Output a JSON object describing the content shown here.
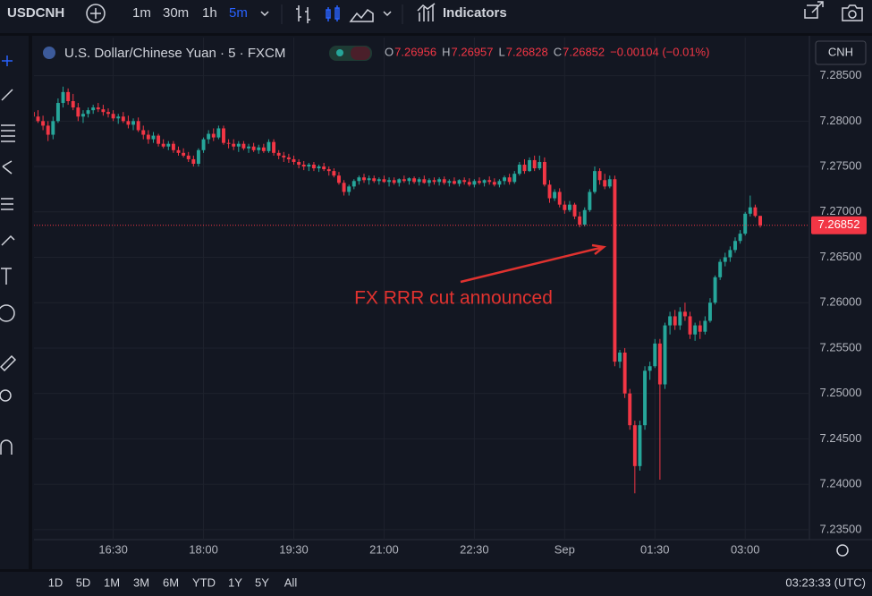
{
  "toolbar": {
    "symbol": "USDCNH",
    "intervals": [
      "1m",
      "30m",
      "1h",
      "5m"
    ],
    "indicators": "Indicators"
  },
  "chart_data": {
    "type": "candlestick",
    "title": "U.S. Dollar/Chinese Yuan · 5 · FXCM",
    "ohlc": [
      {
        "key": "O",
        "value": "7.26956"
      },
      {
        "key": "H",
        "value": "7.26957"
      },
      {
        "key": "L",
        "value": "7.26828"
      },
      {
        "key": "C",
        "value": "7.26852"
      }
    ],
    "change": "−0.00104 (−0.01%)",
    "currency": "CNH",
    "annotation": "FX RRR cut announced",
    "up_color": "#26a69a",
    "down_color": "#f23645",
    "grid": true,
    "xlim": [
      911,
      1684
    ],
    "xticks": [
      {
        "value": 990,
        "label": "16:30"
      },
      {
        "value": 1080,
        "label": "18:00"
      },
      {
        "value": 1170,
        "label": "19:30"
      },
      {
        "value": 1260,
        "label": "21:00"
      },
      {
        "value": 1350,
        "label": "22:30"
      },
      {
        "value": 1440,
        "label": "Sep"
      },
      {
        "value": 1530,
        "label": "01:30"
      },
      {
        "value": 1620,
        "label": "03:00"
      }
    ],
    "ylim": [
      7.2339,
      7.2892
    ],
    "yticks": [
      {
        "value": 7.285,
        "label": "7.28500"
      },
      {
        "value": 7.28,
        "label": "7.28000"
      },
      {
        "value": 7.275,
        "label": "7.27500"
      },
      {
        "value": 7.27,
        "label": "7.27000"
      },
      {
        "value": 7.265,
        "label": "7.26500"
      },
      {
        "value": 7.26,
        "label": "7.26000"
      },
      {
        "value": 7.255,
        "label": "7.25500"
      },
      {
        "value": 7.25,
        "label": "7.25000"
      },
      {
        "value": 7.245,
        "label": "7.24500"
      },
      {
        "value": 7.24,
        "label": "7.24000"
      },
      {
        "value": 7.235,
        "label": "7.23500"
      }
    ],
    "candles": [
      [
        910,
        7.281,
        7.2815,
        7.28,
        7.2805
      ],
      [
        915,
        7.2805,
        7.2812,
        7.2798,
        7.28
      ],
      [
        920,
        7.28,
        7.2806,
        7.279,
        7.2795
      ],
      [
        925,
        7.2795,
        7.28,
        7.2778,
        7.2785
      ],
      [
        930,
        7.2785,
        7.2805,
        7.278,
        7.28
      ],
      [
        935,
        7.28,
        7.2825,
        7.2798,
        7.282
      ],
      [
        940,
        7.282,
        7.2838,
        7.2815,
        7.2832
      ],
      [
        945,
        7.2832,
        7.2836,
        7.2818,
        7.2822
      ],
      [
        950,
        7.2822,
        7.283,
        7.2812,
        7.2815
      ],
      [
        955,
        7.2815,
        7.282,
        7.28,
        7.2805
      ],
      [
        960,
        7.2805,
        7.2812,
        7.2798,
        7.2808
      ],
      [
        965,
        7.2808,
        7.2815,
        7.2804,
        7.2812
      ],
      [
        970,
        7.2812,
        7.2818,
        7.2808,
        7.2815
      ],
      [
        975,
        7.2815,
        7.282,
        7.281,
        7.2813
      ],
      [
        980,
        7.2813,
        7.2818,
        7.2806,
        7.281
      ],
      [
        985,
        7.281,
        7.2814,
        7.2804,
        7.2808
      ],
      [
        990,
        7.2808,
        7.2812,
        7.28,
        7.2803
      ],
      [
        995,
        7.2803,
        7.2808,
        7.2797,
        7.2805
      ],
      [
        1000,
        7.2805,
        7.281,
        7.2798,
        7.28
      ],
      [
        1005,
        7.28,
        7.2806,
        7.2792,
        7.2796
      ],
      [
        1010,
        7.2796,
        7.2803,
        7.279,
        7.28
      ],
      [
        1015,
        7.28,
        7.2804,
        7.2788,
        7.279
      ],
      [
        1020,
        7.279,
        7.2795,
        7.278,
        7.2785
      ],
      [
        1025,
        7.2785,
        7.279,
        7.2775,
        7.278
      ],
      [
        1030,
        7.278,
        7.2788,
        7.2776,
        7.2784
      ],
      [
        1035,
        7.2784,
        7.2786,
        7.2772,
        7.2775
      ],
      [
        1040,
        7.2775,
        7.278,
        7.277,
        7.2772
      ],
      [
        1045,
        7.2772,
        7.2778,
        7.2768,
        7.2775
      ],
      [
        1050,
        7.2775,
        7.2778,
        7.2765,
        7.2768
      ],
      [
        1055,
        7.2768,
        7.2772,
        7.2762,
        7.2765
      ],
      [
        1060,
        7.2765,
        7.277,
        7.276,
        7.2762
      ],
      [
        1065,
        7.2762,
        7.2766,
        7.2755,
        7.2758
      ],
      [
        1070,
        7.2758,
        7.2762,
        7.275,
        7.2753
      ],
      [
        1075,
        7.2753,
        7.277,
        7.275,
        7.2768
      ],
      [
        1080,
        7.2768,
        7.2782,
        7.2765,
        7.278
      ],
      [
        1085,
        7.278,
        7.279,
        7.2775,
        7.2786
      ],
      [
        1090,
        7.2786,
        7.2792,
        7.2778,
        7.2782
      ],
      [
        1095,
        7.2782,
        7.2795,
        7.278,
        7.2792
      ],
      [
        1100,
        7.2792,
        7.2795,
        7.2774,
        7.2776
      ],
      [
        1105,
        7.2776,
        7.278,
        7.277,
        7.2775
      ],
      [
        1110,
        7.2775,
        7.278,
        7.2768,
        7.2772
      ],
      [
        1115,
        7.2772,
        7.2778,
        7.2766,
        7.2775
      ],
      [
        1120,
        7.2775,
        7.2778,
        7.2768,
        7.277
      ],
      [
        1125,
        7.277,
        7.2775,
        7.2765,
        7.2772
      ],
      [
        1130,
        7.2772,
        7.2776,
        7.2766,
        7.2768
      ],
      [
        1135,
        7.2768,
        7.2774,
        7.2764,
        7.2771
      ],
      [
        1140,
        7.2771,
        7.2775,
        7.2765,
        7.2767
      ],
      [
        1145,
        7.2767,
        7.278,
        7.2765,
        7.2777
      ],
      [
        1150,
        7.2777,
        7.278,
        7.2762,
        7.2765
      ],
      [
        1155,
        7.2765,
        7.2768,
        7.2758,
        7.2762
      ],
      [
        1160,
        7.2762,
        7.2766,
        7.2755,
        7.276
      ],
      [
        1165,
        7.276,
        7.2764,
        7.2754,
        7.2758
      ],
      [
        1170,
        7.2758,
        7.2762,
        7.2752,
        7.2755
      ],
      [
        1175,
        7.2755,
        7.2758,
        7.2748,
        7.2752
      ],
      [
        1180,
        7.2752,
        7.2756,
        7.2746,
        7.275
      ],
      [
        1185,
        7.275,
        7.2754,
        7.2745,
        7.2752
      ],
      [
        1190,
        7.2752,
        7.2755,
        7.2745,
        7.2748
      ],
      [
        1195,
        7.2748,
        7.2752,
        7.2744,
        7.275
      ],
      [
        1200,
        7.275,
        7.2754,
        7.2745,
        7.2747
      ],
      [
        1205,
        7.2747,
        7.275,
        7.274,
        7.2745
      ],
      [
        1210,
        7.2745,
        7.2748,
        7.2738,
        7.274
      ],
      [
        1215,
        7.274,
        7.2744,
        7.273,
        7.2732
      ],
      [
        1220,
        7.2732,
        7.2735,
        7.2718,
        7.2722
      ],
      [
        1225,
        7.2722,
        7.273,
        7.2718,
        7.2728
      ],
      [
        1230,
        7.2728,
        7.2736,
        7.2725,
        7.2734
      ],
      [
        1235,
        7.2734,
        7.274,
        7.273,
        7.2738
      ],
      [
        1240,
        7.2738,
        7.2742,
        7.2732,
        7.2735
      ],
      [
        1245,
        7.2735,
        7.274,
        7.273,
        7.2737
      ],
      [
        1250,
        7.2737,
        7.274,
        7.2732,
        7.2734
      ],
      [
        1255,
        7.2734,
        7.2738,
        7.273,
        7.2736
      ],
      [
        1260,
        7.2736,
        7.274,
        7.2732,
        7.2733
      ],
      [
        1265,
        7.2733,
        7.2738,
        7.2728,
        7.2735
      ],
      [
        1270,
        7.2735,
        7.2738,
        7.273,
        7.2732
      ],
      [
        1275,
        7.2732,
        7.2737,
        7.2728,
        7.2736
      ],
      [
        1280,
        7.2736,
        7.274,
        7.2732,
        7.2734
      ],
      [
        1285,
        7.2734,
        7.2738,
        7.273,
        7.2737
      ],
      [
        1290,
        7.2737,
        7.2739,
        7.2731,
        7.2733
      ],
      [
        1295,
        7.2733,
        7.2738,
        7.2729,
        7.2736
      ],
      [
        1300,
        7.2736,
        7.274,
        7.2731,
        7.2732
      ],
      [
        1305,
        7.2732,
        7.2737,
        7.2728,
        7.2735
      ],
      [
        1310,
        7.2735,
        7.2738,
        7.273,
        7.2733
      ],
      [
        1315,
        7.2733,
        7.2738,
        7.2729,
        7.2736
      ],
      [
        1320,
        7.2736,
        7.2739,
        7.273,
        7.2732
      ],
      [
        1325,
        7.2732,
        7.2736,
        7.2728,
        7.2734
      ],
      [
        1330,
        7.2734,
        7.2738,
        7.273,
        7.2731
      ],
      [
        1335,
        7.2731,
        7.2736,
        7.2728,
        7.2735
      ],
      [
        1340,
        7.2735,
        7.2738,
        7.273,
        7.2733
      ],
      [
        1345,
        7.2733,
        7.2737,
        7.2728,
        7.273
      ],
      [
        1350,
        7.273,
        7.2736,
        7.2727,
        7.2734
      ],
      [
        1355,
        7.2734,
        7.2738,
        7.273,
        7.2732
      ],
      [
        1360,
        7.2732,
        7.2736,
        7.2728,
        7.2735
      ],
      [
        1365,
        7.2735,
        7.2739,
        7.273,
        7.2733
      ],
      [
        1370,
        7.2733,
        7.2737,
        7.2728,
        7.273
      ],
      [
        1375,
        7.273,
        7.2736,
        7.2727,
        7.2734
      ],
      [
        1380,
        7.2734,
        7.274,
        7.273,
        7.2738
      ],
      [
        1385,
        7.2738,
        7.2742,
        7.273,
        7.2733
      ],
      [
        1390,
        7.2733,
        7.2745,
        7.2731,
        7.2742
      ],
      [
        1395,
        7.2742,
        7.2755,
        7.274,
        7.2752
      ],
      [
        1400,
        7.2752,
        7.2758,
        7.2742,
        7.2745
      ],
      [
        1405,
        7.2745,
        7.276,
        7.2744,
        7.2757
      ],
      [
        1410,
        7.2757,
        7.2762,
        7.2745,
        7.2748
      ],
      [
        1415,
        7.2748,
        7.2762,
        7.2746,
        7.2755
      ],
      [
        1420,
        7.2755,
        7.276,
        7.2728,
        7.273
      ],
      [
        1425,
        7.273,
        7.2735,
        7.271,
        7.2715
      ],
      [
        1430,
        7.2715,
        7.2725,
        7.2712,
        7.2722
      ],
      [
        1435,
        7.2722,
        7.2726,
        7.2705,
        7.2708
      ],
      [
        1440,
        7.2708,
        7.2712,
        7.2698,
        7.2702
      ],
      [
        1445,
        7.2702,
        7.2712,
        7.27,
        7.2708
      ],
      [
        1450,
        7.2708,
        7.271,
        7.2692,
        7.2695
      ],
      [
        1455,
        7.2695,
        7.27,
        7.2683,
        7.2686
      ],
      [
        1460,
        7.2686,
        7.2705,
        7.2684,
        7.2702
      ],
      [
        1465,
        7.2702,
        7.2725,
        7.27,
        7.2722
      ],
      [
        1470,
        7.2722,
        7.275,
        7.272,
        7.2745
      ],
      [
        1475,
        7.2745,
        7.2748,
        7.273,
        7.2735
      ],
      [
        1480,
        7.2735,
        7.2742,
        7.2725,
        7.2728
      ],
      [
        1485,
        7.2728,
        7.274,
        7.2726,
        7.2736
      ],
      [
        1490,
        7.2736,
        7.274,
        7.253,
        7.2535
      ],
      [
        1495,
        7.2535,
        7.2548,
        7.2528,
        7.2545
      ],
      [
        1500,
        7.2545,
        7.255,
        7.2495,
        7.25
      ],
      [
        1505,
        7.25,
        7.2505,
        7.246,
        7.2465
      ],
      [
        1510,
        7.2465,
        7.247,
        7.239,
        7.242
      ],
      [
        1515,
        7.242,
        7.247,
        7.2415,
        7.2465
      ],
      [
        1520,
        7.2465,
        7.253,
        7.246,
        7.2525
      ],
      [
        1525,
        7.2525,
        7.2535,
        7.2515,
        7.253
      ],
      [
        1530,
        7.253,
        7.256,
        7.2528,
        7.2555
      ],
      [
        1535,
        7.2555,
        7.256,
        7.2405,
        7.251
      ],
      [
        1540,
        7.251,
        7.2578,
        7.2505,
        7.2575
      ],
      [
        1545,
        7.2575,
        7.259,
        7.2565,
        7.2585
      ],
      [
        1550,
        7.2585,
        7.2592,
        7.257,
        7.2575
      ],
      [
        1555,
        7.2575,
        7.2595,
        7.257,
        7.259
      ],
      [
        1560,
        7.259,
        7.26,
        7.258,
        7.2585
      ],
      [
        1565,
        7.2585,
        7.259,
        7.256,
        7.2565
      ],
      [
        1570,
        7.2565,
        7.2578,
        7.2558,
        7.2575
      ],
      [
        1575,
        7.2575,
        7.258,
        7.256,
        7.2568
      ],
      [
        1580,
        7.2568,
        7.2585,
        7.2565,
        7.258
      ],
      [
        1585,
        7.258,
        7.2605,
        7.2578,
        7.26
      ],
      [
        1590,
        7.26,
        7.263,
        7.2598,
        7.2628
      ],
      [
        1595,
        7.2628,
        7.2648,
        7.2625,
        7.2645
      ],
      [
        1600,
        7.2645,
        7.2655,
        7.264,
        7.265
      ],
      [
        1605,
        7.265,
        7.2662,
        7.2645,
        7.2658
      ],
      [
        1610,
        7.2658,
        7.2672,
        7.2655,
        7.2668
      ],
      [
        1615,
        7.2668,
        7.268,
        7.2665,
        7.2676
      ],
      [
        1620,
        7.2676,
        7.27,
        7.2674,
        7.2698
      ],
      [
        1625,
        7.2698,
        7.2718,
        7.2695,
        7.2705
      ],
      [
        1630,
        7.2705,
        7.2708,
        7.2694,
        7.26956
      ],
      [
        1635,
        7.26956,
        7.26957,
        7.26828,
        7.26852
      ]
    ]
  },
  "footer": {
    "ranges": [
      "1D",
      "5D",
      "1M",
      "3M",
      "6M",
      "YTD",
      "1Y",
      "5Y",
      "All"
    ],
    "clock": "03:23:33 (UTC)"
  }
}
